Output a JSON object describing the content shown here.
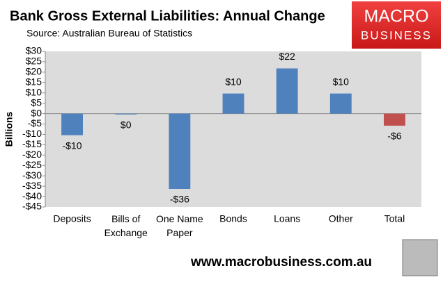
{
  "chart_data": {
    "type": "bar",
    "title": "Bank Gross External Liabilities: Annual Change",
    "subtitle": "Source: Australian Bureau of Statistics",
    "y_label": "Billions",
    "categories": [
      "Deposits",
      "Bills of\nExchange",
      "One Name\nPaper",
      "Bonds",
      "Loans",
      "Other",
      "Total"
    ],
    "values": [
      -10.4,
      -0.4,
      -36.3,
      9.7,
      21.8,
      9.7,
      -5.8
    ],
    "value_labels": [
      "-$10",
      "$0",
      "-$36",
      "$10",
      "$22",
      "$10",
      "-$6"
    ],
    "colors": [
      "#4f81bd",
      "#4f81bd",
      "#4f81bd",
      "#4f81bd",
      "#4f81bd",
      "#4f81bd",
      "#c0504d"
    ],
    "ylim": [
      -45,
      30
    ],
    "yticks": [
      {
        "value": 30,
        "label": "$30"
      },
      {
        "value": 25,
        "label": "$25"
      },
      {
        "value": 20,
        "label": "$20"
      },
      {
        "value": 15,
        "label": "$15"
      },
      {
        "value": 10,
        "label": "$10"
      },
      {
        "value": 5,
        "label": "$5"
      },
      {
        "value": 0,
        "label": "$0"
      },
      {
        "value": -5,
        "label": "-$5"
      },
      {
        "value": -10,
        "label": "-$10"
      },
      {
        "value": -15,
        "label": "-$15"
      },
      {
        "value": -20,
        "label": "-$20"
      },
      {
        "value": -25,
        "label": "-$25"
      },
      {
        "value": -30,
        "label": "-$30"
      },
      {
        "value": -35,
        "label": "-$35"
      },
      {
        "value": -40,
        "label": "-$40"
      },
      {
        "value": -45,
        "label": "-$45"
      }
    ],
    "grid": false
  },
  "logo": {
    "line1": "MACRO",
    "line2": "BUSINESS"
  },
  "footer": {
    "url": "www.macrobusiness.com.au"
  }
}
